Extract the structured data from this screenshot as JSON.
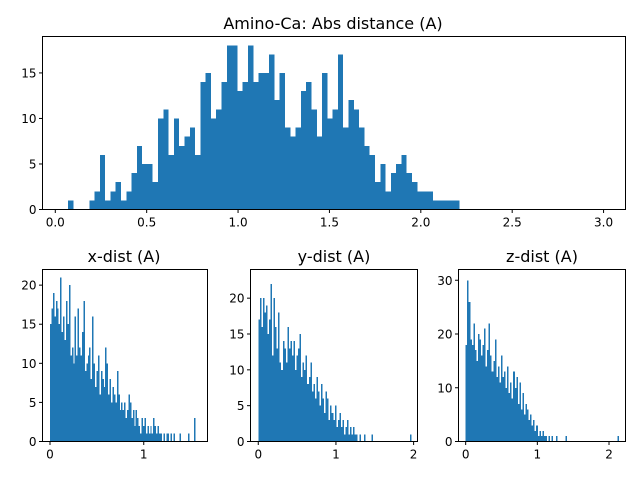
{
  "chart_data": [
    {
      "id": "abs",
      "type": "bar",
      "title": "Amino-Ca: Abs distance (A)",
      "xlabel": "",
      "ylabel": "",
      "xlim": [
        -0.07,
        3.12
      ],
      "ylim": [
        0,
        19
      ],
      "xticks": [
        0.0,
        0.5,
        1.0,
        1.5,
        2.0,
        2.5,
        3.0
      ],
      "xtick_labels": [
        "0.0",
        "0.5",
        "1.0",
        "1.5",
        "2.0",
        "2.5",
        "3.0"
      ],
      "yticks": [
        0,
        5,
        10,
        15
      ],
      "ytick_labels": [
        "0",
        "5",
        "10",
        "15"
      ],
      "bin_start": 0.07,
      "bin_width": 0.02895,
      "values": [
        1,
        0,
        0,
        0,
        1,
        2,
        6,
        1,
        2,
        3,
        1,
        2,
        4,
        7,
        5,
        5,
        3,
        10,
        11,
        6,
        10,
        7,
        8,
        9,
        6,
        14,
        15,
        10,
        11,
        14,
        18,
        18,
        13,
        14,
        18,
        14,
        15,
        15,
        17,
        12,
        15,
        9,
        8,
        9,
        13,
        14,
        11,
        8,
        15,
        10,
        11,
        17,
        9,
        12,
        11,
        9,
        7,
        6,
        3,
        5,
        2,
        4,
        5,
        6,
        4,
        3,
        2,
        2,
        2,
        1,
        1,
        1,
        1,
        1,
        0,
        0,
        0,
        0,
        0,
        0,
        0,
        0,
        0,
        0,
        0,
        0,
        0,
        0,
        0,
        0,
        0,
        0,
        0,
        0,
        0,
        0,
        0,
        0,
        0,
        0
      ]
    },
    {
      "id": "x",
      "type": "bar",
      "title": "x-dist (A)",
      "xlabel": "",
      "ylabel": "",
      "xlim": [
        -0.08,
        1.68
      ],
      "ylim": [
        0,
        22
      ],
      "xticks": [
        0,
        1
      ],
      "xtick_labels": [
        "0",
        "1"
      ],
      "yticks": [
        0,
        5,
        10,
        15,
        20
      ],
      "ytick_labels": [
        "0",
        "5",
        "10",
        "15",
        "20"
      ],
      "bin_start": 0.0,
      "bin_width": 0.0155,
      "values": [
        15,
        17,
        19,
        16,
        18,
        17,
        15,
        21,
        14,
        16,
        13,
        18,
        15,
        20,
        11,
        12,
        10,
        16,
        11,
        17,
        12,
        11,
        14,
        18,
        9,
        10,
        11,
        12,
        8,
        16,
        10,
        7,
        9,
        11,
        6,
        9,
        8,
        7,
        12,
        10,
        6,
        8,
        5,
        7,
        6,
        5,
        9,
        6,
        4,
        5,
        4,
        5,
        3,
        4,
        6,
        5,
        3,
        4,
        2,
        4,
        3,
        2,
        1,
        3,
        2,
        3,
        1,
        2,
        1,
        2,
        1,
        3,
        2,
        1,
        2,
        1,
        1,
        0,
        1,
        0,
        1,
        1,
        0,
        1,
        0,
        1,
        0,
        0,
        0,
        1,
        0,
        0,
        0,
        0,
        0,
        1,
        0,
        0,
        0,
        3
      ]
    },
    {
      "id": "y",
      "type": "bar",
      "title": "y-dist (A)",
      "xlabel": "",
      "ylabel": "",
      "xlim": [
        -0.1,
        2.05
      ],
      "ylim": [
        0,
        24
      ],
      "xticks": [
        0,
        1,
        2
      ],
      "xtick_labels": [
        "0",
        "1",
        "2"
      ],
      "yticks": [
        0,
        5,
        10,
        15,
        20
      ],
      "ytick_labels": [
        "0",
        "5",
        "10",
        "15",
        "20"
      ],
      "bin_start": 0.0,
      "bin_width": 0.0197,
      "values": [
        17,
        20,
        16,
        20,
        18,
        19,
        15,
        17,
        22,
        12,
        20,
        16,
        13,
        18,
        11,
        10,
        14,
        13,
        11,
        16,
        13,
        14,
        12,
        14,
        10,
        12,
        13,
        15,
        9,
        11,
        10,
        12,
        8,
        9,
        11,
        7,
        8,
        6,
        9,
        7,
        5,
        8,
        6,
        4,
        7,
        6,
        3,
        5,
        4,
        3,
        5,
        2,
        3,
        4,
        2,
        3,
        1,
        2,
        3,
        1,
        2,
        1,
        2,
        1,
        1,
        0,
        1,
        0,
        0,
        1,
        0,
        0,
        0,
        0,
        1,
        0,
        0,
        0,
        0,
        0,
        0,
        0,
        0,
        0,
        0,
        0,
        0,
        0,
        0,
        0,
        0,
        0,
        0,
        0,
        0,
        0,
        0,
        0,
        0,
        1
      ]
    },
    {
      "id": "z",
      "type": "bar",
      "title": "z-dist (A)",
      "xlabel": "",
      "ylabel": "",
      "xlim": [
        -0.1,
        2.23
      ],
      "ylim": [
        0,
        32
      ],
      "xticks": [
        0,
        1,
        2
      ],
      "xtick_labels": [
        "0",
        "1",
        "2"
      ],
      "yticks": [
        0,
        10,
        20,
        30
      ],
      "ytick_labels": [
        "0",
        "10",
        "20",
        "30"
      ],
      "bin_start": 0.0,
      "bin_width": 0.0214,
      "values": [
        18,
        30,
        26,
        19,
        18,
        22,
        17,
        15,
        20,
        19,
        16,
        18,
        21,
        14,
        17,
        22,
        16,
        13,
        15,
        19,
        12,
        14,
        11,
        16,
        12,
        13,
        10,
        14,
        9,
        11,
        8,
        13,
        10,
        12,
        7,
        11,
        6,
        9,
        5,
        7,
        6,
        4,
        5,
        3,
        4,
        2,
        3,
        1,
        2,
        1,
        2,
        1,
        1,
        0,
        1,
        0,
        1,
        0,
        0,
        1,
        0,
        0,
        0,
        0,
        0,
        1,
        0,
        0,
        0,
        0,
        0,
        0,
        0,
        0,
        0,
        0,
        0,
        0,
        0,
        0,
        0,
        0,
        0,
        0,
        0,
        0,
        0,
        0,
        0,
        0,
        0,
        0,
        0,
        0,
        0,
        0,
        0,
        0,
        0,
        1
      ]
    }
  ]
}
